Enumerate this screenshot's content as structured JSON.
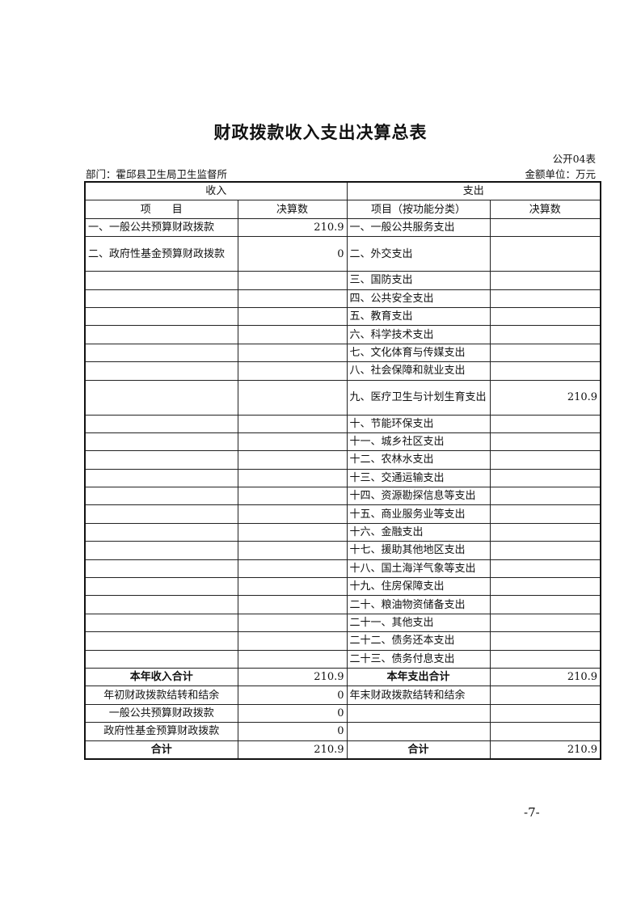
{
  "title": "财政拨款收入支出决算总表",
  "form_no": "公开04表",
  "department": "部门：霍邱县卫生局卫生监督所",
  "unit": "金额单位：万元",
  "header": {
    "income": "收入",
    "expense": "支出",
    "income_item": "项　　目",
    "income_amount": "决算数",
    "expense_item": "项目（按功能分类）",
    "expense_amount": "决算数"
  },
  "rows": [
    {
      "income_item": "一、一般公共预算财政拨款",
      "income_amount": "210.9",
      "expense_item": "一、一般公共服务支出",
      "expense_amount": ""
    },
    {
      "income_item": "二、政府性基金预算财政拨款",
      "income_amount": "0",
      "expense_item": "二、外交支出",
      "expense_amount": ""
    },
    {
      "income_item": "",
      "income_amount": "",
      "expense_item": "三、国防支出",
      "expense_amount": ""
    },
    {
      "income_item": "",
      "income_amount": "",
      "expense_item": "四、公共安全支出",
      "expense_amount": ""
    },
    {
      "income_item": "",
      "income_amount": "",
      "expense_item": "五、教育支出",
      "expense_amount": ""
    },
    {
      "income_item": "",
      "income_amount": "",
      "expense_item": "六、科学技术支出",
      "expense_amount": ""
    },
    {
      "income_item": "",
      "income_amount": "",
      "expense_item": "七、文化体育与传媒支出",
      "expense_amount": ""
    },
    {
      "income_item": "",
      "income_amount": "",
      "expense_item": "八、社会保障和就业支出",
      "expense_amount": ""
    },
    {
      "income_item": "",
      "income_amount": "",
      "expense_item": "九、医疗卫生与计划生育支出",
      "expense_amount": "210.9"
    },
    {
      "income_item": "",
      "income_amount": "",
      "expense_item": "十、节能环保支出",
      "expense_amount": ""
    },
    {
      "income_item": "",
      "income_amount": "",
      "expense_item": "十一、城乡社区支出",
      "expense_amount": ""
    },
    {
      "income_item": "",
      "income_amount": "",
      "expense_item": "十二、农林水支出",
      "expense_amount": ""
    },
    {
      "income_item": "",
      "income_amount": "",
      "expense_item": "十三、交通运输支出",
      "expense_amount": ""
    },
    {
      "income_item": "",
      "income_amount": "",
      "expense_item": "十四、资源勘探信息等支出",
      "expense_amount": ""
    },
    {
      "income_item": "",
      "income_amount": "",
      "expense_item": "十五、商业服务业等支出",
      "expense_amount": ""
    },
    {
      "income_item": "",
      "income_amount": "",
      "expense_item": "十六、金融支出",
      "expense_amount": ""
    },
    {
      "income_item": "",
      "income_amount": "",
      "expense_item": "十七、援助其他地区支出",
      "expense_amount": ""
    },
    {
      "income_item": "",
      "income_amount": "",
      "expense_item": "十八、国土海洋气象等支出",
      "expense_amount": ""
    },
    {
      "income_item": "",
      "income_amount": "",
      "expense_item": "十九、住房保障支出",
      "expense_amount": ""
    },
    {
      "income_item": "",
      "income_amount": "",
      "expense_item": "二十、粮油物资储备支出",
      "expense_amount": ""
    },
    {
      "income_item": "",
      "income_amount": "",
      "expense_item": "二十一、其他支出",
      "expense_amount": ""
    },
    {
      "income_item": "",
      "income_amount": "",
      "expense_item": "二十二、债务还本支出",
      "expense_amount": ""
    },
    {
      "income_item": "",
      "income_amount": "",
      "expense_item": "二十三、债务付息支出",
      "expense_amount": ""
    }
  ],
  "summary_rows": [
    {
      "income_item": "本年收入合计",
      "income_amount": "210.9",
      "expense_item": "本年支出合计",
      "expense_amount": "210.9",
      "bold": true
    },
    {
      "income_item": "年初财政拨款结转和结余",
      "income_amount": "0",
      "expense_item": "年末财政拨款结转和结余",
      "expense_amount": "",
      "bold": false
    },
    {
      "income_item": "一般公共预算财政拨款",
      "income_amount": "0",
      "expense_item": "",
      "expense_amount": "",
      "bold": false
    },
    {
      "income_item": "政府性基金预算财政拨款",
      "income_amount": "0",
      "expense_item": "",
      "expense_amount": "",
      "bold": false
    },
    {
      "income_item": "合计",
      "income_amount": "210.9",
      "expense_item": "合计",
      "expense_amount": "210.9",
      "bold": true
    }
  ],
  "page_number": "-7-"
}
